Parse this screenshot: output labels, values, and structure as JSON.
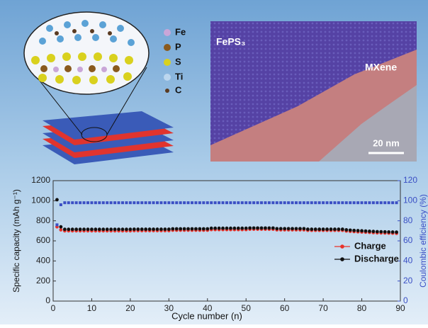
{
  "figure": {
    "element_legend": [
      "Fe",
      "P",
      "S",
      "Ti",
      "C"
    ],
    "tem_labels": [
      "FePS₃",
      "MXene"
    ],
    "scale_bar": "20 nm"
  },
  "chart_data": {
    "type": "scatter",
    "x_label": "Cycle number (n)",
    "y_label": "Specific capacity (mAh g⁻¹)",
    "y2_label": "Coulombic efficiency (%)",
    "xlim": [
      0,
      90
    ],
    "xticks": [
      0,
      10,
      20,
      30,
      40,
      50,
      60,
      70,
      80,
      90
    ],
    "ylim": [
      0,
      1200
    ],
    "yticks": [
      0,
      200,
      400,
      600,
      800,
      1000,
      1200
    ],
    "y2lim": [
      0,
      120
    ],
    "y2ticks": [
      0,
      20,
      40,
      60,
      80,
      100,
      120
    ],
    "x": [
      1,
      2,
      3,
      4,
      5,
      6,
      7,
      8,
      9,
      10,
      11,
      12,
      13,
      14,
      15,
      16,
      17,
      18,
      19,
      20,
      21,
      22,
      23,
      24,
      25,
      26,
      27,
      28,
      29,
      30,
      31,
      32,
      33,
      34,
      35,
      36,
      37,
      38,
      39,
      40,
      41,
      42,
      43,
      44,
      45,
      46,
      47,
      48,
      49,
      50,
      51,
      52,
      53,
      54,
      55,
      56,
      57,
      58,
      59,
      60,
      61,
      62,
      63,
      64,
      65,
      66,
      67,
      68,
      69,
      70,
      71,
      72,
      73,
      74,
      75,
      76,
      77,
      78,
      79,
      80,
      81,
      82,
      83,
      84,
      85,
      86,
      87,
      88,
      89
    ],
    "series": [
      {
        "name": "Charge",
        "color": "#e8322a",
        "marker": "circle",
        "values": [
          740,
          710,
          700,
          700,
          700,
          700,
          700,
          700,
          700,
          700,
          700,
          700,
          700,
          700,
          700,
          700,
          700,
          700,
          700,
          700,
          702,
          702,
          702,
          702,
          702,
          702,
          702,
          702,
          702,
          702,
          706,
          706,
          706,
          706,
          706,
          706,
          706,
          706,
          706,
          706,
          712,
          712,
          712,
          712,
          712,
          712,
          712,
          712,
          712,
          712,
          716,
          716,
          716,
          716,
          716,
          716,
          716,
          710,
          710,
          710,
          710,
          710,
          710,
          710,
          710,
          705,
          705,
          705,
          705,
          705,
          705,
          705,
          705,
          705,
          705,
          698,
          695,
          692,
          690,
          688,
          686,
          684,
          682,
          680,
          679,
          678,
          677,
          676,
          675
        ]
      },
      {
        "name": "Discharge",
        "color": "#111111",
        "marker": "circle",
        "values": [
          1010,
          740,
          715,
          715,
          715,
          715,
          715,
          715,
          715,
          715,
          715,
          715,
          715,
          715,
          715,
          715,
          715,
          715,
          715,
          715,
          716,
          716,
          716,
          716,
          716,
          716,
          716,
          716,
          716,
          716,
          720,
          720,
          720,
          720,
          720,
          720,
          720,
          720,
          720,
          720,
          726,
          726,
          726,
          726,
          726,
          726,
          726,
          726,
          726,
          726,
          728,
          728,
          728,
          728,
          728,
          728,
          728,
          722,
          722,
          722,
          722,
          722,
          722,
          722,
          722,
          716,
          716,
          716,
          716,
          716,
          716,
          716,
          716,
          716,
          716,
          710,
          707,
          704,
          702,
          700,
          698,
          696,
          694,
          692,
          691,
          690,
          689,
          688,
          687
        ]
      },
      {
        "color": "#3b4fc4",
        "marker": "square",
        "axis": "y2",
        "values": [
          76,
          96,
          98,
          98,
          98,
          98,
          98,
          98,
          98,
          98,
          98,
          98,
          98,
          98,
          98,
          98,
          98,
          98,
          98,
          98,
          98,
          98,
          98,
          98,
          98,
          98,
          98,
          98,
          98,
          98,
          98,
          98,
          98,
          98,
          98,
          98,
          98,
          98,
          98,
          98,
          98,
          98,
          98,
          98,
          98,
          98,
          98,
          98,
          98,
          98,
          98,
          98,
          98,
          98,
          98,
          98,
          98,
          98,
          98,
          98,
          98,
          98,
          98,
          98,
          98,
          98,
          98,
          98,
          98,
          98,
          98,
          98,
          98,
          98,
          98,
          98,
          98,
          98,
          98,
          98,
          98,
          98,
          98,
          98,
          98,
          98,
          98,
          98,
          98
        ]
      }
    ]
  }
}
